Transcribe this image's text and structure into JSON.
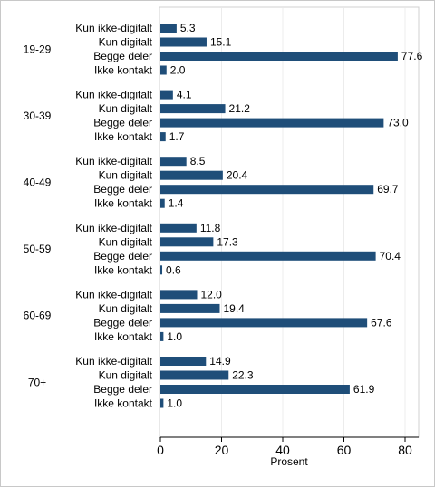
{
  "chart_data": {
    "type": "bar",
    "orientation": "horizontal",
    "xlabel": "Prosent",
    "xlim": [
      0,
      85
    ],
    "xticks": [
      0,
      20,
      40,
      60,
      80
    ],
    "grid": true,
    "bar_color": "#1f4e79",
    "categories": [
      "Kun ikke-digitalt",
      "Kun digitalt",
      "Begge deler",
      "Ikke kontakt"
    ],
    "groups": [
      {
        "label": "19-29",
        "values": [
          5.3,
          15.1,
          77.6,
          2.0
        ],
        "value_labels": [
          "5.3",
          "15.1",
          "77.6",
          "2.0"
        ]
      },
      {
        "label": "30-39",
        "values": [
          4.1,
          21.2,
          73.0,
          1.7
        ],
        "value_labels": [
          "4.1",
          "21.2",
          "73.0",
          "1.7"
        ]
      },
      {
        "label": "40-49",
        "values": [
          8.5,
          20.4,
          69.7,
          1.4
        ],
        "value_labels": [
          "8.5",
          "20.4",
          "69.7",
          "1.4"
        ]
      },
      {
        "label": "50-59",
        "values": [
          11.8,
          17.3,
          70.4,
          0.6
        ],
        "value_labels": [
          "11.8",
          "17.3",
          "70.4",
          "0.6"
        ]
      },
      {
        "label": "60-69",
        "values": [
          12.0,
          19.4,
          67.6,
          1.0
        ],
        "value_labels": [
          "12.0",
          "19.4",
          "67.6",
          "1.0"
        ]
      },
      {
        "label": "70+",
        "values": [
          14.9,
          22.3,
          61.9,
          1.0
        ],
        "value_labels": [
          "14.9",
          "22.3",
          "61.9",
          "1.0"
        ]
      }
    ]
  }
}
